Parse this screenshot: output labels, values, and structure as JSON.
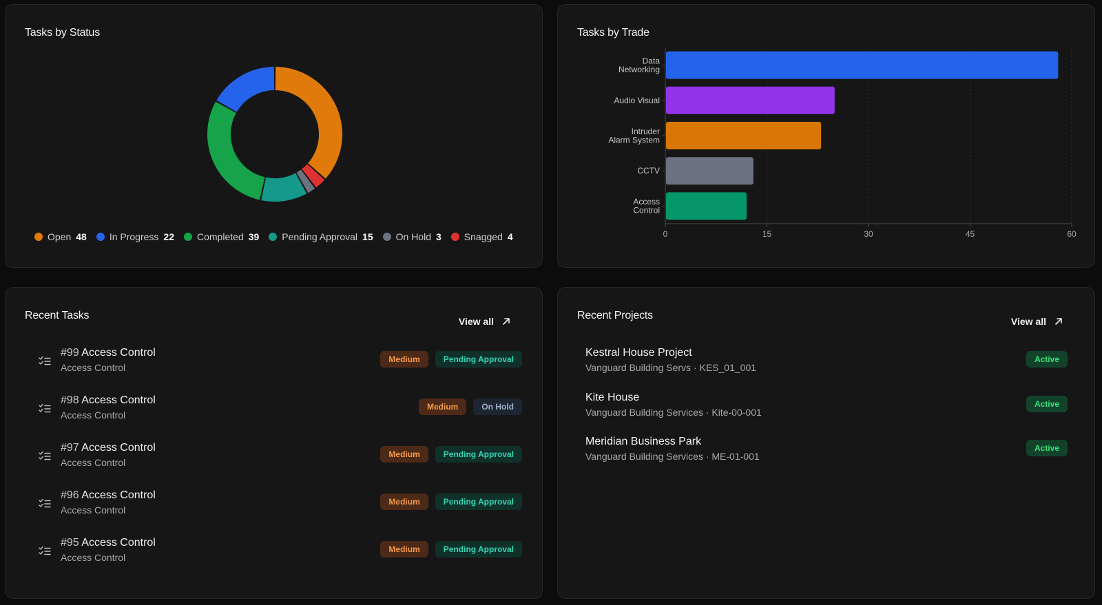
{
  "status_card": {
    "title": "Tasks by Status"
  },
  "trade_card": {
    "title": "Tasks by Trade"
  },
  "chart_data": [
    {
      "type": "pie",
      "variant": "donut",
      "title": "Tasks by Status",
      "legend_position": "bottom",
      "slices": [
        {
          "label": "Open",
          "value": 48,
          "color": "#e07b0b"
        },
        {
          "label": "Snagged",
          "value": 4,
          "color": "#e03131"
        },
        {
          "label": "On Hold",
          "value": 3,
          "color": "#6b7280"
        },
        {
          "label": "Pending Approval",
          "value": 15,
          "color": "#14998a"
        },
        {
          "label": "Completed",
          "value": 39,
          "color": "#16a34a"
        },
        {
          "label": "In Progress",
          "value": 22,
          "color": "#2563eb"
        }
      ],
      "legend": [
        {
          "label": "Open",
          "value": 48,
          "color": "#e07b0b"
        },
        {
          "label": "In Progress",
          "value": 22,
          "color": "#2563eb"
        },
        {
          "label": "Completed",
          "value": 39,
          "color": "#16a34a"
        },
        {
          "label": "Pending Approval",
          "value": 15,
          "color": "#14998a"
        },
        {
          "label": "On Hold",
          "value": 3,
          "color": "#6b7280"
        },
        {
          "label": "Snagged",
          "value": 4,
          "color": "#e03131"
        }
      ]
    },
    {
      "type": "bar",
      "orientation": "horizontal",
      "title": "Tasks by Trade",
      "categories": [
        [
          "Data",
          "Networking"
        ],
        [
          "Audio Visual"
        ],
        [
          "Intruder",
          "Alarm System"
        ],
        [
          "CCTV"
        ],
        [
          "Access",
          "Control"
        ]
      ],
      "values": [
        58,
        25,
        23,
        13,
        12
      ],
      "colors": [
        "#2563eb",
        "#9333ea",
        "#d97706",
        "#6b7280",
        "#059669"
      ],
      "xlim": [
        0,
        60
      ],
      "xticks": [
        0,
        15,
        30,
        45,
        60
      ],
      "grid": true
    }
  ],
  "tasks_card": {
    "title": "Recent Tasks",
    "view_all": "View all",
    "items": [
      {
        "num": "#99",
        "name": "Access Control",
        "sub": "Access Control",
        "priority": "Medium",
        "status": "Pending Approval",
        "status_kind": "pending"
      },
      {
        "num": "#98",
        "name": "Access Control",
        "sub": "Access Control",
        "priority": "Medium",
        "status": "On Hold",
        "status_kind": "hold"
      },
      {
        "num": "#97",
        "name": "Access Control",
        "sub": "Access Control",
        "priority": "Medium",
        "status": "Pending Approval",
        "status_kind": "pending"
      },
      {
        "num": "#96",
        "name": "Access Control",
        "sub": "Access Control",
        "priority": "Medium",
        "status": "Pending Approval",
        "status_kind": "pending"
      },
      {
        "num": "#95",
        "name": "Access Control",
        "sub": "Access Control",
        "priority": "Medium",
        "status": "Pending Approval",
        "status_kind": "pending"
      }
    ]
  },
  "projects_card": {
    "title": "Recent Projects",
    "view_all": "View all",
    "items": [
      {
        "name": "Kestral House Project",
        "sub": "Vanguard Building Servs · KES_01_001",
        "status": "Active"
      },
      {
        "name": "Kite House",
        "sub": "Vanguard Building Services · Kite-00-001",
        "status": "Active"
      },
      {
        "name": "Meridian Business Park",
        "sub": "Vanguard Building Services · ME-01-001",
        "status": "Active"
      }
    ]
  }
}
